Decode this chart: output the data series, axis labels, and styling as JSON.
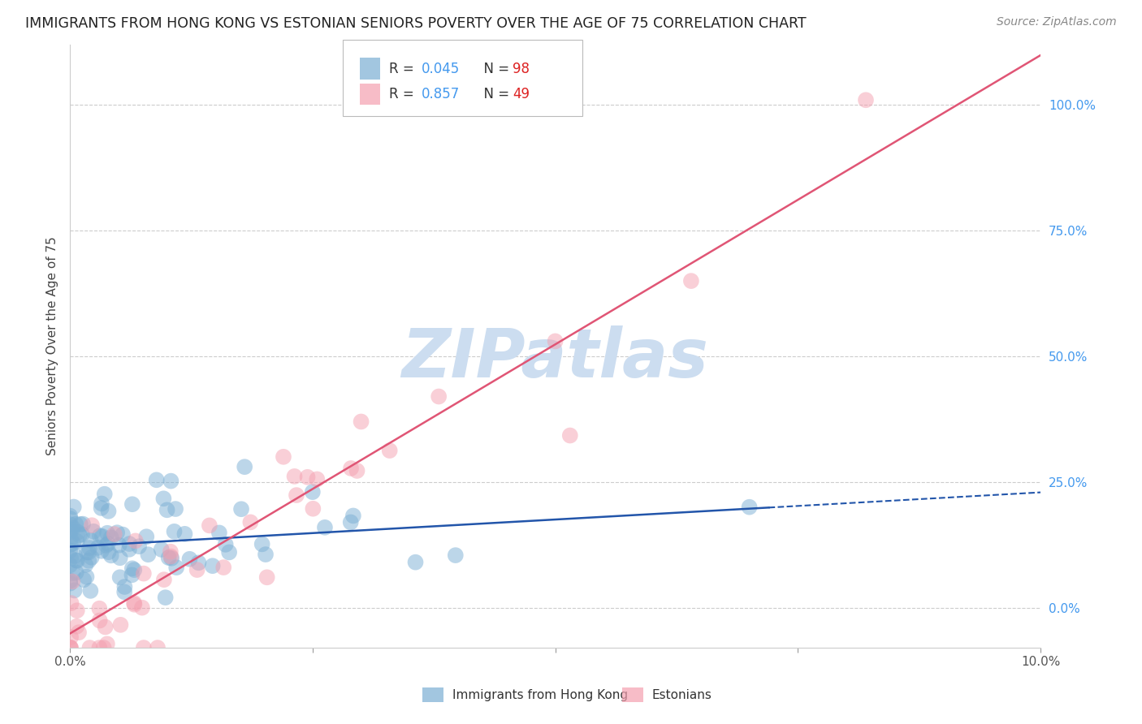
{
  "title": "IMMIGRANTS FROM HONG KONG VS ESTONIAN SENIORS POVERTY OVER THE AGE OF 75 CORRELATION CHART",
  "source": "Source: ZipAtlas.com",
  "ylabel": "Seniors Poverty Over the Age of 75",
  "watermark": "ZIPatlas",
  "blue_R": 0.045,
  "blue_N": 98,
  "pink_R": 0.857,
  "pink_N": 49,
  "blue_label": "Immigrants from Hong Kong",
  "pink_label": "Estonians",
  "title_color": "#222222",
  "source_color": "#888888",
  "blue_color": "#7bafd4",
  "pink_color": "#f4a0b0",
  "blue_line_color": "#2255aa",
  "pink_line_color": "#e05575",
  "right_tick_color": "#4499ee",
  "xlim": [
    0.0,
    0.1
  ],
  "ylim": [
    -0.08,
    1.12
  ],
  "right_yticks": [
    0.0,
    0.25,
    0.5,
    0.75,
    1.0
  ],
  "right_ytick_labels": [
    "0.0%",
    "25.0%",
    "50.0%",
    "75.0%",
    "100.0%"
  ],
  "grid_color": "#cccccc",
  "background_color": "#ffffff",
  "watermark_color": "#ccddf0",
  "seed": 12345
}
